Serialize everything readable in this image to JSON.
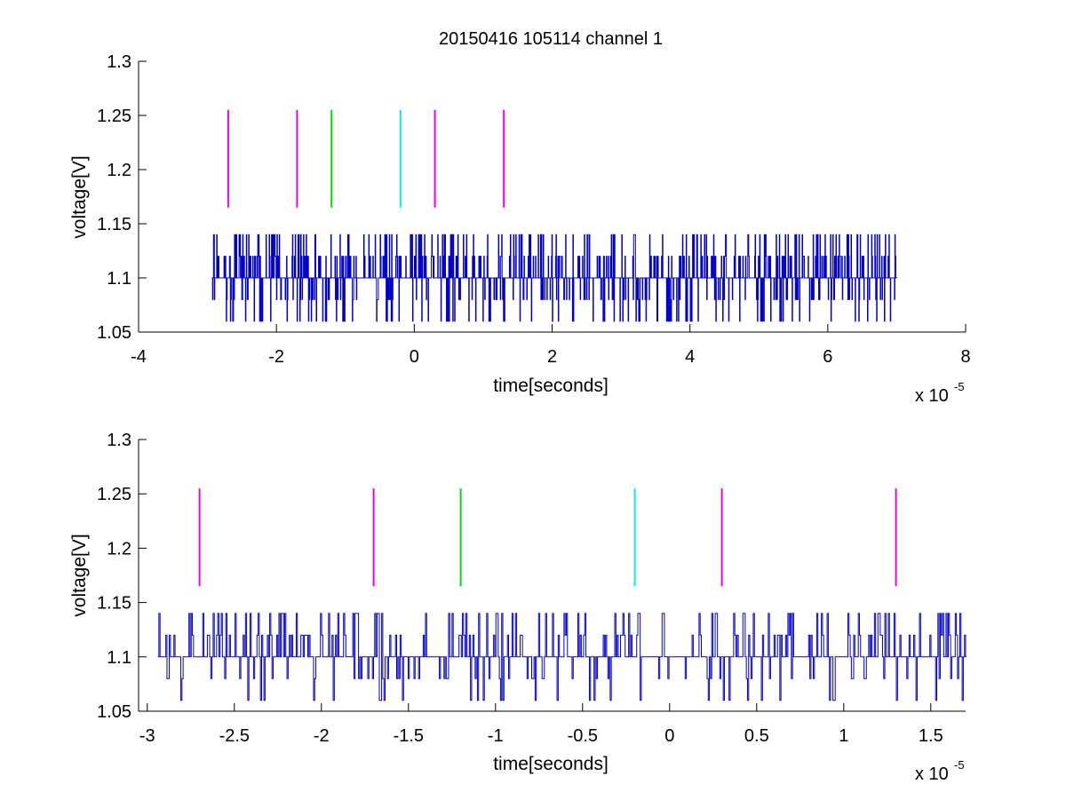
{
  "chart_data": [
    {
      "type": "line",
      "title": "20150416 105114 channel 1",
      "xlabel": "time[seconds]",
      "ylabel": "voltage[V]",
      "x_exponent_label": "x 10",
      "x_exponent_power": "-5",
      "xlim": [
        -4,
        8
      ],
      "ylim": [
        1.05,
        1.3
      ],
      "x_ticks": [
        "-4",
        "-2",
        "0",
        "2",
        "4",
        "6",
        "8"
      ],
      "x_tick_values": [
        -4,
        -2,
        0,
        2,
        4,
        6,
        8
      ],
      "y_ticks": [
        "1.05",
        "1.1",
        "1.15",
        "1.2",
        "1.25",
        "1.3"
      ],
      "y_tick_values": [
        1.05,
        1.1,
        1.15,
        1.2,
        1.25,
        1.3
      ],
      "grid": false,
      "signal": {
        "color": "#0000cc",
        "x_start": -2.94,
        "x_end": 7.0,
        "levels": [
          1.06,
          1.08,
          1.1,
          1.12,
          1.14
        ],
        "baseline": 1.1
      },
      "markers": [
        {
          "x": -2.7,
          "y0": 1.165,
          "y1": 1.255,
          "color": "#ee00ee"
        },
        {
          "x": -1.7,
          "y0": 1.165,
          "y1": 1.255,
          "color": "#ee00ee"
        },
        {
          "x": -1.2,
          "y0": 1.165,
          "y1": 1.255,
          "color": "#00dd00"
        },
        {
          "x": -0.2,
          "y0": 1.165,
          "y1": 1.255,
          "color": "#00eeee"
        },
        {
          "x": 0.3,
          "y0": 1.165,
          "y1": 1.255,
          "color": "#ee00ee"
        },
        {
          "x": 1.3,
          "y0": 1.165,
          "y1": 1.255,
          "color": "#ee00ee"
        }
      ]
    },
    {
      "type": "line",
      "title": "",
      "xlabel": "time[seconds]",
      "ylabel": "voltage[V]",
      "x_exponent_label": "x 10",
      "x_exponent_power": "-5",
      "xlim": [
        -3.05,
        1.7
      ],
      "ylim": [
        1.05,
        1.3
      ],
      "x_ticks": [
        "-3",
        "-2.5",
        "-2",
        "-1.5",
        "-1",
        "-0.5",
        "0",
        "0.5",
        "1",
        "1.5"
      ],
      "x_tick_values": [
        -3,
        -2.5,
        -2,
        -1.5,
        -1,
        -0.5,
        0,
        0.5,
        1,
        1.5
      ],
      "y_ticks": [
        "1.05",
        "1.1",
        "1.15",
        "1.2",
        "1.25",
        "1.3"
      ],
      "y_tick_values": [
        1.05,
        1.1,
        1.15,
        1.2,
        1.25,
        1.3
      ],
      "grid": false,
      "signal": {
        "color": "#0000cc",
        "x_start": -2.94,
        "x_end": 1.7,
        "levels": [
          1.06,
          1.08,
          1.1,
          1.12,
          1.14
        ],
        "baseline": 1.1
      },
      "markers": [
        {
          "x": -2.7,
          "y0": 1.165,
          "y1": 1.255,
          "color": "#ee00ee"
        },
        {
          "x": -1.7,
          "y0": 1.165,
          "y1": 1.255,
          "color": "#ee00ee"
        },
        {
          "x": -1.2,
          "y0": 1.165,
          "y1": 1.255,
          "color": "#00dd00"
        },
        {
          "x": -0.2,
          "y0": 1.165,
          "y1": 1.255,
          "color": "#00eeee"
        },
        {
          "x": 0.3,
          "y0": 1.165,
          "y1": 1.255,
          "color": "#ee00ee"
        },
        {
          "x": 1.3,
          "y0": 1.165,
          "y1": 1.255,
          "color": "#ee00ee"
        }
      ]
    }
  ]
}
